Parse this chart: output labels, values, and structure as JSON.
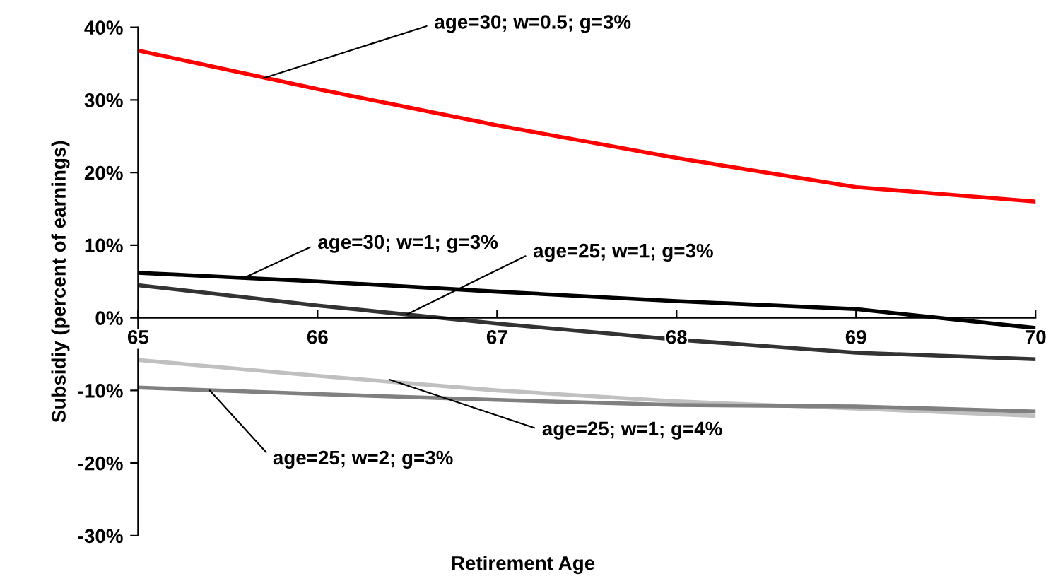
{
  "chart_data": {
    "type": "line",
    "xlabel": "Retirement Age",
    "ylabel": "Subsidiy (percent of earnings)",
    "x": [
      65,
      66,
      67,
      68,
      69,
      70
    ],
    "series": [
      {
        "color": "#ff0000",
        "values": [
          36.8,
          31.5,
          26.5,
          22,
          18,
          16
        ]
      },
      {
        "color": "#000000",
        "values": [
          6.2,
          5,
          3.6,
          2.3,
          1.2,
          -1.4
        ]
      },
      {
        "color": "#333333",
        "values": [
          4.5,
          1.7,
          -0.8,
          -3,
          -4.8,
          -5.7
        ]
      },
      {
        "color": "#c0c0c0",
        "values": [
          -5.8,
          -8,
          -10,
          -11.5,
          -12.5,
          -13.5
        ]
      },
      {
        "color": "#808080",
        "values": [
          -9.6,
          -10.5,
          -11.3,
          -12,
          -12.2,
          -12.9
        ]
      }
    ],
    "annotations": [
      {
        "text": "age=30; w=0.5; g=3%",
        "x": 65.7,
        "y": 33
      },
      {
        "text": "age=30; w=1; g=3%",
        "x": 65.6,
        "y": 5.6
      },
      {
        "text": "age=25; w=1; g=3%",
        "x": 66.5,
        "y": 0.5
      },
      {
        "text": "age=25; w=1; g=4%",
        "x": 66.4,
        "y": -8.5
      },
      {
        "text": "age=25; w=2; g=3%",
        "x": 65.4,
        "y": -10
      }
    ],
    "xlim": [
      65,
      70
    ],
    "ylim": [
      -30,
      40
    ],
    "xticks": [
      65,
      66,
      67,
      68,
      69,
      70
    ],
    "yticks": [
      {
        "value": -30,
        "label": "-30%"
      },
      {
        "value": -20,
        "label": "-20%"
      },
      {
        "value": -10,
        "label": "-10%"
      },
      {
        "value": 0,
        "label": "0%"
      },
      {
        "value": 10,
        "label": "10%"
      },
      {
        "value": 20,
        "label": "20%"
      },
      {
        "value": 30,
        "label": "30%"
      },
      {
        "value": 40,
        "label": "40%"
      }
    ],
    "grid": false,
    "legend": false
  }
}
